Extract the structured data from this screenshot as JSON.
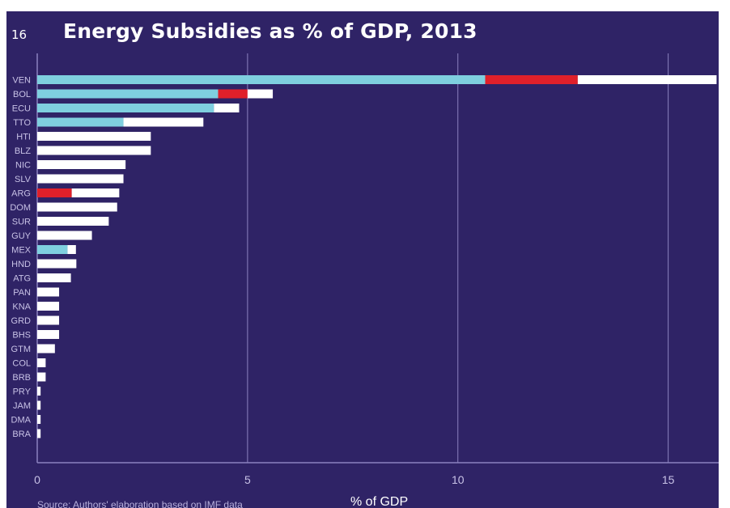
{
  "figure_number": "16",
  "source_note": "Source: Authors' elaboration based on IMF data",
  "colors": {
    "background": "#2f2366",
    "gridline": "#8c82bf",
    "series_a": "#7fcfdf",
    "series_b": "#e0202a",
    "series_c": "#ffffff",
    "tick_text": "#c8c2e6"
  },
  "chart_data": {
    "type": "bar",
    "orientation": "horizontal",
    "stacked": true,
    "title": "Energy Subsidies as % of GDP, 2013",
    "xlabel": "% of GDP",
    "ylabel": "",
    "xlim": [
      0,
      16.2
    ],
    "x_ticks": [
      0,
      5,
      10,
      15
    ],
    "grid": true,
    "legend": "none",
    "categories": [
      "VEN",
      "BOL",
      "ECU",
      "TTO",
      "HTI",
      "BLZ",
      "NIC",
      "SLV",
      "ARG",
      "DOM",
      "SUR",
      "GUY",
      "MEX",
      "HND",
      "ATG",
      "PAN",
      "KNA",
      "GRD",
      "BHS",
      "GTM",
      "COL",
      "BRB",
      "PRY",
      "JAM",
      "DMA",
      "BRA"
    ],
    "series": [
      {
        "color": "#7fcfdf",
        "values": [
          10.65,
          4.3,
          4.2,
          2.05,
          0,
          0,
          0,
          0,
          0,
          0,
          0,
          0,
          0.72,
          0,
          0,
          0,
          0,
          0,
          0,
          0,
          0,
          0,
          0,
          0,
          0,
          0
        ]
      },
      {
        "color": "#e0202a",
        "values": [
          2.2,
          0.7,
          0,
          0,
          0,
          0,
          0,
          0,
          0.82,
          0,
          0,
          0,
          0,
          0,
          0,
          0,
          0,
          0,
          0,
          0,
          0,
          0,
          0,
          0,
          0,
          0
        ]
      },
      {
        "color": "#ffffff",
        "values": [
          3.3,
          0.6,
          0.6,
          1.9,
          2.7,
          2.7,
          2.1,
          2.05,
          1.13,
          1.9,
          1.7,
          1.3,
          0.2,
          0.93,
          0.8,
          0.52,
          0.52,
          0.52,
          0.52,
          0.42,
          0.2,
          0.2,
          0.08,
          0.08,
          0.08,
          0.08
        ]
      }
    ]
  }
}
